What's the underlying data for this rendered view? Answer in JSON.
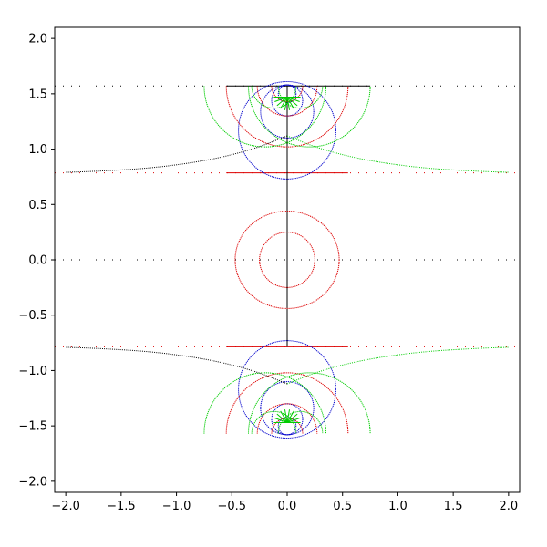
{
  "chart_data": {
    "type": "scatter",
    "title": "",
    "xlabel": "",
    "ylabel": "",
    "xlim": [
      -2.1,
      2.1
    ],
    "ylim": [
      -2.1,
      2.1
    ],
    "grid": false,
    "x_ticks": [
      -2.0,
      -1.5,
      -1.0,
      -0.5,
      0.0,
      0.5,
      1.0,
      1.5,
      2.0
    ],
    "y_ticks": [
      -2.0,
      -1.5,
      -1.0,
      -0.5,
      0.0,
      0.5,
      1.0,
      1.5,
      2.0
    ],
    "x_tick_labels": [
      "−2.0",
      "−1.5",
      "−1.0",
      "−0.5",
      "0.0",
      "0.5",
      "1.0",
      "1.5",
      "2.0"
    ],
    "y_tick_labels": [
      "−2.0",
      "−1.5",
      "−1.0",
      "−0.5",
      "0.0",
      "0.5",
      "1.0",
      "1.5",
      "2.0"
    ],
    "colors": {
      "red": "#dd0000",
      "blue": "#0000cc",
      "green": "#00cc00",
      "black": "#000000"
    },
    "dotted_lines": [
      {
        "color": "black",
        "y": 1.5708,
        "x_range": [
          -2.1,
          2.1
        ]
      },
      {
        "color": "red",
        "y": 0.7854,
        "x_range": [
          -2.1,
          2.1
        ]
      },
      {
        "color": "black",
        "y": 0.0,
        "x_range": [
          -2.1,
          2.1
        ]
      },
      {
        "color": "red",
        "y": -0.7854,
        "x_range": [
          -2.1,
          2.1
        ]
      }
    ],
    "solid_segments": [
      {
        "color": "black",
        "x1": -0.55,
        "y1": 1.5708,
        "x2": 0.75,
        "y2": 1.5708
      },
      {
        "color": "red",
        "x1": -0.55,
        "y1": 0.7854,
        "x2": 0.55,
        "y2": 0.7854
      },
      {
        "color": "red",
        "x1": -0.55,
        "y1": -0.7854,
        "x2": 0.55,
        "y2": -0.7854
      },
      {
        "color": "black",
        "x1": 0.0,
        "y1": -0.7854,
        "x2": 0.0,
        "y2": 1.5708
      }
    ],
    "circles": [
      {
        "color": "red",
        "cx": 0.0,
        "cy": 0.0,
        "r": 0.25
      },
      {
        "color": "red",
        "cx": 0.0,
        "cy": 0.0,
        "r": 0.47,
        "ry": 0.44
      },
      {
        "color": "blue",
        "cx": 0.0,
        "cy": 1.17,
        "r": 0.44
      },
      {
        "color": "blue",
        "cx": 0.0,
        "cy": 1.34,
        "r": 0.24
      },
      {
        "color": "blue",
        "cx": 0.0,
        "cy": 1.44,
        "r": 0.14
      },
      {
        "color": "blue",
        "cx": 0.0,
        "cy": 1.5,
        "r": 0.08
      },
      {
        "color": "red",
        "cx": 0.0,
        "cy": 1.57,
        "r": 0.55,
        "half": "lower"
      },
      {
        "color": "red",
        "cx": 0.0,
        "cy": 1.57,
        "r": 0.27,
        "half": "lower"
      },
      {
        "color": "red",
        "cx": 0.0,
        "cy": 1.57,
        "r": 0.14,
        "half": "lower"
      },
      {
        "color": "green",
        "cx": 0.2,
        "cy": 1.57,
        "r": 0.55,
        "half": "lower"
      },
      {
        "color": "green",
        "cx": -0.2,
        "cy": 1.57,
        "r": 0.55,
        "half": "lower"
      },
      {
        "color": "green",
        "cx": 0.12,
        "cy": 1.57,
        "r": 0.2,
        "half": "lower"
      },
      {
        "color": "green",
        "cx": -0.12,
        "cy": 1.57,
        "r": 0.2,
        "half": "lower"
      },
      {
        "color": "blue",
        "cx": 0.0,
        "cy": -1.17,
        "r": 0.44
      },
      {
        "color": "blue",
        "cx": 0.0,
        "cy": -1.34,
        "r": 0.24
      },
      {
        "color": "blue",
        "cx": 0.0,
        "cy": -1.44,
        "r": 0.14
      },
      {
        "color": "blue",
        "cx": 0.0,
        "cy": -1.5,
        "r": 0.08
      },
      {
        "color": "red",
        "cx": 0.0,
        "cy": -1.57,
        "r": 0.55,
        "half": "upper"
      },
      {
        "color": "red",
        "cx": 0.0,
        "cy": -1.57,
        "r": 0.27,
        "half": "upper"
      },
      {
        "color": "red",
        "cx": 0.0,
        "cy": -1.57,
        "r": 0.14,
        "half": "upper"
      },
      {
        "color": "green",
        "cx": 0.2,
        "cy": -1.57,
        "r": 0.55,
        "half": "upper"
      },
      {
        "color": "green",
        "cx": -0.2,
        "cy": -1.57,
        "r": 0.55,
        "half": "upper"
      },
      {
        "color": "green",
        "cx": 0.12,
        "cy": -1.57,
        "r": 0.2,
        "half": "upper"
      },
      {
        "color": "green",
        "cx": -0.12,
        "cy": -1.57,
        "r": 0.2,
        "half": "upper"
      }
    ],
    "curves": [
      {
        "color": "green",
        "points": [
          [
            0.0,
            1.12
          ],
          [
            0.3,
            1.0
          ],
          [
            0.7,
            0.9
          ],
          [
            1.2,
            0.83
          ],
          [
            1.7,
            0.8
          ],
          [
            2.0,
            0.79
          ]
        ]
      },
      {
        "color": "black",
        "points": [
          [
            0.0,
            1.12
          ],
          [
            -0.3,
            1.0
          ],
          [
            -0.7,
            0.9
          ],
          [
            -1.2,
            0.83
          ],
          [
            -1.7,
            0.8
          ],
          [
            -2.0,
            0.79
          ]
        ]
      },
      {
        "color": "green",
        "points": [
          [
            0.0,
            -1.12
          ],
          [
            0.3,
            -1.0
          ],
          [
            0.7,
            -0.9
          ],
          [
            1.2,
            -0.83
          ],
          [
            1.7,
            -0.8
          ],
          [
            2.0,
            -0.79
          ]
        ]
      },
      {
        "color": "black",
        "points": [
          [
            0.0,
            -1.12
          ],
          [
            -0.3,
            -1.0
          ],
          [
            -0.7,
            -0.9
          ],
          [
            -1.2,
            -0.83
          ],
          [
            -1.7,
            -0.8
          ],
          [
            -2.0,
            -0.79
          ]
        ]
      }
    ],
    "rays": [
      {
        "color": "green",
        "center": [
          0.0,
          1.47
        ],
        "length": 0.12,
        "angles_deg": [
          180,
          200,
          220,
          240,
          260,
          280,
          300,
          320,
          340,
          360
        ]
      },
      {
        "color": "green",
        "center": [
          0.0,
          -1.47
        ],
        "length": 0.12,
        "angles_deg": [
          0,
          20,
          40,
          60,
          80,
          100,
          120,
          140,
          160,
          180
        ]
      }
    ]
  }
}
